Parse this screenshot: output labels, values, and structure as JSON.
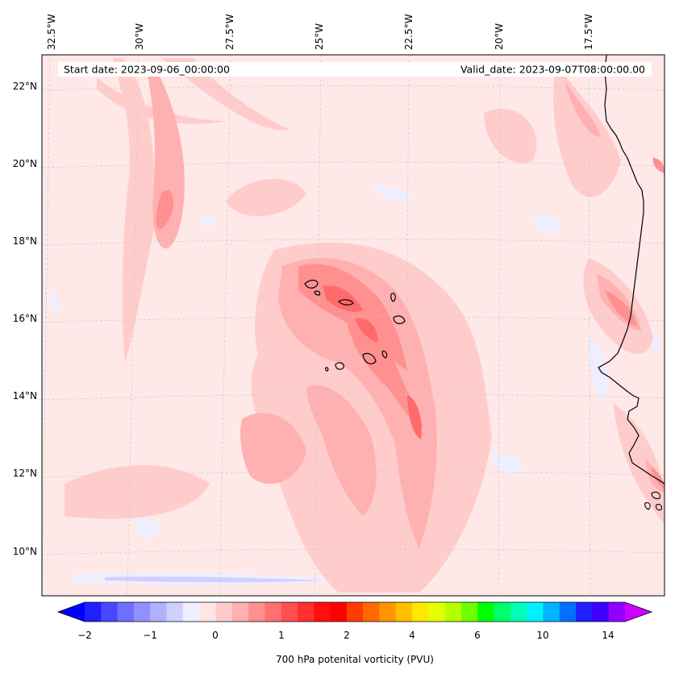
{
  "header": {
    "start_date": "Start date: 2023-09-06_00:00:00",
    "valid_date": "Valid_date: 2023-09-07T08:00:00.00"
  },
  "lon_labels": [
    "32.5°W",
    "30°W",
    "27.5°W",
    "25°W",
    "22.5°W",
    "20°W",
    "17.5°W"
  ],
  "lat_labels": [
    "22°N",
    "20°N",
    "18°N",
    "16°N",
    "14°N",
    "12°N",
    "10°N"
  ],
  "colorbar": {
    "label": "700 hPa potenital vorticity (PVU)",
    "tick_labels": [
      "−2",
      "−1",
      "0",
      "1",
      "2",
      "4",
      "6",
      "10",
      "14"
    ],
    "colors": [
      "#0000ff",
      "#2020ff",
      "#4848ff",
      "#7070ff",
      "#9090ff",
      "#b0b0ff",
      "#d0d0ff",
      "#eeeeff",
      "#ffe6e6",
      "#ffcccc",
      "#ffb0b0",
      "#ff9090",
      "#ff7070",
      "#ff5050",
      "#ff3030",
      "#ff1010",
      "#ff0000",
      "#ff3c00",
      "#ff6a00",
      "#ff9600",
      "#ffc000",
      "#ffe800",
      "#e6ff00",
      "#b4ff00",
      "#70ff00",
      "#00ff00",
      "#00ff6a",
      "#00ffb4",
      "#00f0ff",
      "#00b4ff",
      "#0070ff",
      "#2020ff",
      "#4000ff",
      "#9000ff",
      "#cc00ff"
    ]
  },
  "map": {
    "background": "#ffe8e8",
    "coastline_color": "#000000"
  }
}
